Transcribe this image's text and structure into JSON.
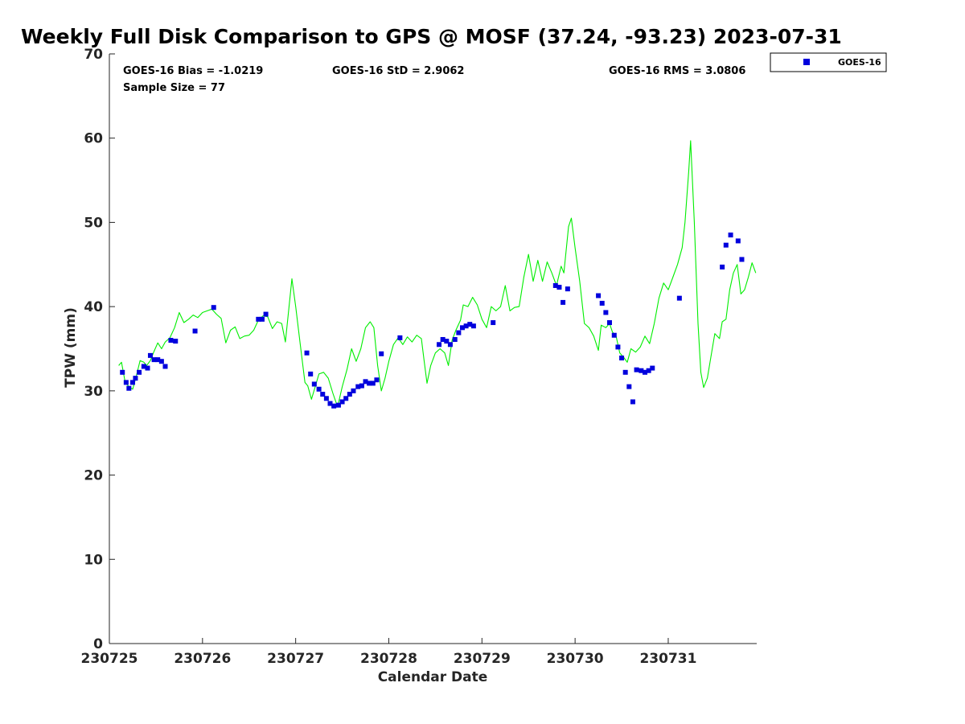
{
  "chart_data": {
    "type": "scatter",
    "title": "Weekly Full Disk Comparison to GPS @ MOSF (37.24, -93.23) 2023-07-31",
    "xlabel": "Calendar Date",
    "ylabel": "TPW (mm)",
    "xlim": [
      25.0,
      31.95
    ],
    "ylim": [
      0,
      70
    ],
    "x_ticks": [
      25,
      26,
      27,
      28,
      29,
      30,
      31
    ],
    "x_tick_labels": [
      "230725",
      "230726",
      "230727",
      "230728",
      "230729",
      "230730",
      "230731"
    ],
    "y_ticks": [
      0,
      10,
      20,
      30,
      40,
      50,
      60,
      70
    ],
    "grid": false,
    "legend_position": "top-right, outside plot",
    "stats": {
      "bias": "GOES-16 Bias = -1.0219",
      "std": "GOES-16 StD = 2.9062",
      "rms": "GOES-16 RMS = 3.0806",
      "sample": "Sample Size = 77"
    },
    "series": [
      {
        "name": "GOES-16",
        "marker": "square",
        "color": "#0000dd",
        "points": [
          [
            25.14,
            32.2
          ],
          [
            25.18,
            31.0
          ],
          [
            25.21,
            30.3
          ],
          [
            25.25,
            31.0
          ],
          [
            25.28,
            31.5
          ],
          [
            25.32,
            32.2
          ],
          [
            25.37,
            32.9
          ],
          [
            25.41,
            32.7
          ],
          [
            25.44,
            34.2
          ],
          [
            25.48,
            33.7
          ],
          [
            25.52,
            33.7
          ],
          [
            25.56,
            33.5
          ],
          [
            25.6,
            32.9
          ],
          [
            25.66,
            36.0
          ],
          [
            25.71,
            35.9
          ],
          [
            25.92,
            37.1
          ],
          [
            26.12,
            39.9
          ],
          [
            26.6,
            38.5
          ],
          [
            26.64,
            38.5
          ],
          [
            26.68,
            39.1
          ],
          [
            27.12,
            34.5
          ],
          [
            27.16,
            32.0
          ],
          [
            27.2,
            30.8
          ],
          [
            27.25,
            30.2
          ],
          [
            27.29,
            29.6
          ],
          [
            27.33,
            29.1
          ],
          [
            27.37,
            28.5
          ],
          [
            27.41,
            28.2
          ],
          [
            27.46,
            28.3
          ],
          [
            27.5,
            28.7
          ],
          [
            27.54,
            29.1
          ],
          [
            27.58,
            29.6
          ],
          [
            27.62,
            30.0
          ],
          [
            27.67,
            30.5
          ],
          [
            27.71,
            30.6
          ],
          [
            27.75,
            31.1
          ],
          [
            27.79,
            30.9
          ],
          [
            27.83,
            30.9
          ],
          [
            27.87,
            31.3
          ],
          [
            27.92,
            34.4
          ],
          [
            28.12,
            36.3
          ],
          [
            28.54,
            35.5
          ],
          [
            28.58,
            36.1
          ],
          [
            28.62,
            35.9
          ],
          [
            28.66,
            35.5
          ],
          [
            28.71,
            36.1
          ],
          [
            28.75,
            36.9
          ],
          [
            28.79,
            37.5
          ],
          [
            28.83,
            37.7
          ],
          [
            28.87,
            37.9
          ],
          [
            28.91,
            37.7
          ],
          [
            29.12,
            38.1
          ],
          [
            29.79,
            42.5
          ],
          [
            29.83,
            42.3
          ],
          [
            29.87,
            40.5
          ],
          [
            29.92,
            42.1
          ],
          [
            30.25,
            41.3
          ],
          [
            30.29,
            40.4
          ],
          [
            30.33,
            39.3
          ],
          [
            30.37,
            38.1
          ],
          [
            30.42,
            36.6
          ],
          [
            30.46,
            35.2
          ],
          [
            30.5,
            33.9
          ],
          [
            30.54,
            32.2
          ],
          [
            30.58,
            30.5
          ],
          [
            30.62,
            28.7
          ],
          [
            30.66,
            32.5
          ],
          [
            30.71,
            32.4
          ],
          [
            30.75,
            32.2
          ],
          [
            30.79,
            32.4
          ],
          [
            30.83,
            32.7
          ],
          [
            31.12,
            41.0
          ],
          [
            31.58,
            44.7
          ],
          [
            31.62,
            47.3
          ],
          [
            31.67,
            48.5
          ],
          [
            31.75,
            47.8
          ],
          [
            31.79,
            45.6
          ]
        ]
      },
      {
        "name": "",
        "line": true,
        "color": "#00ee00",
        "points": [
          [
            25.1,
            33.0
          ],
          [
            25.13,
            33.4
          ],
          [
            25.17,
            31.0
          ],
          [
            25.21,
            30.5
          ],
          [
            25.25,
            30.2
          ],
          [
            25.29,
            31.8
          ],
          [
            25.33,
            33.6
          ],
          [
            25.37,
            33.4
          ],
          [
            25.4,
            33.0
          ],
          [
            25.44,
            33.6
          ],
          [
            25.48,
            34.7
          ],
          [
            25.52,
            35.7
          ],
          [
            25.56,
            35.0
          ],
          [
            25.6,
            35.8
          ],
          [
            25.65,
            36.3
          ],
          [
            25.7,
            37.5
          ],
          [
            25.75,
            39.3
          ],
          [
            25.8,
            38.1
          ],
          [
            25.85,
            38.5
          ],
          [
            25.9,
            39.0
          ],
          [
            25.95,
            38.7
          ],
          [
            26.0,
            39.3
          ],
          [
            26.05,
            39.5
          ],
          [
            26.1,
            39.7
          ],
          [
            26.15,
            39.1
          ],
          [
            26.2,
            38.6
          ],
          [
            26.25,
            35.7
          ],
          [
            26.3,
            37.2
          ],
          [
            26.35,
            37.6
          ],
          [
            26.4,
            36.2
          ],
          [
            26.45,
            36.5
          ],
          [
            26.5,
            36.6
          ],
          [
            26.55,
            37.2
          ],
          [
            26.6,
            38.4
          ],
          [
            26.65,
            38.9
          ],
          [
            26.7,
            38.8
          ],
          [
            26.75,
            37.4
          ],
          [
            26.8,
            38.2
          ],
          [
            26.85,
            38.0
          ],
          [
            26.89,
            35.8
          ],
          [
            26.96,
            43.3
          ],
          [
            27.0,
            40.0
          ],
          [
            27.05,
            35.5
          ],
          [
            27.1,
            31.0
          ],
          [
            27.13,
            30.6
          ],
          [
            27.17,
            29.0
          ],
          [
            27.21,
            30.5
          ],
          [
            27.25,
            32.0
          ],
          [
            27.3,
            32.2
          ],
          [
            27.35,
            31.5
          ],
          [
            27.4,
            29.7
          ],
          [
            27.45,
            28.1
          ],
          [
            27.5,
            30.5
          ],
          [
            27.55,
            32.5
          ],
          [
            27.6,
            35.0
          ],
          [
            27.65,
            33.5
          ],
          [
            27.7,
            35.0
          ],
          [
            27.75,
            37.5
          ],
          [
            27.8,
            38.2
          ],
          [
            27.84,
            37.5
          ],
          [
            27.88,
            33.0
          ],
          [
            27.92,
            30.0
          ],
          [
            27.96,
            31.5
          ],
          [
            28.0,
            33.5
          ],
          [
            28.05,
            35.5
          ],
          [
            28.1,
            36.3
          ],
          [
            28.15,
            35.5
          ],
          [
            28.2,
            36.4
          ],
          [
            28.25,
            35.8
          ],
          [
            28.3,
            36.6
          ],
          [
            28.35,
            36.2
          ],
          [
            28.38,
            33.5
          ],
          [
            28.41,
            30.9
          ],
          [
            28.45,
            33.0
          ],
          [
            28.5,
            34.5
          ],
          [
            28.55,
            35.0
          ],
          [
            28.6,
            34.5
          ],
          [
            28.64,
            33.0
          ],
          [
            28.68,
            36.0
          ],
          [
            28.72,
            37.2
          ],
          [
            28.77,
            38.4
          ],
          [
            28.8,
            40.2
          ],
          [
            28.85,
            40.0
          ],
          [
            28.9,
            41.1
          ],
          [
            28.95,
            40.2
          ],
          [
            29.0,
            38.5
          ],
          [
            29.05,
            37.5
          ],
          [
            29.1,
            40.0
          ],
          [
            29.15,
            39.5
          ],
          [
            29.2,
            40.0
          ],
          [
            29.25,
            42.5
          ],
          [
            29.3,
            39.5
          ],
          [
            29.35,
            39.9
          ],
          [
            29.4,
            40.0
          ],
          [
            29.45,
            43.5
          ],
          [
            29.5,
            46.2
          ],
          [
            29.55,
            43.0
          ],
          [
            29.6,
            45.5
          ],
          [
            29.65,
            43.0
          ],
          [
            29.7,
            45.3
          ],
          [
            29.75,
            44.0
          ],
          [
            29.8,
            42.5
          ],
          [
            29.85,
            44.8
          ],
          [
            29.88,
            44.0
          ],
          [
            29.93,
            49.5
          ],
          [
            29.96,
            50.5
          ],
          [
            30.0,
            47.0
          ],
          [
            30.05,
            43.0
          ],
          [
            30.1,
            38.0
          ],
          [
            30.15,
            37.5
          ],
          [
            30.2,
            36.5
          ],
          [
            30.25,
            34.8
          ],
          [
            30.28,
            37.8
          ],
          [
            30.33,
            37.5
          ],
          [
            30.37,
            38.0
          ],
          [
            30.4,
            37.0
          ],
          [
            30.44,
            36.5
          ],
          [
            30.48,
            34.5
          ],
          [
            30.52,
            34.0
          ],
          [
            30.56,
            33.4
          ],
          [
            30.6,
            35.0
          ],
          [
            30.65,
            34.6
          ],
          [
            30.7,
            35.2
          ],
          [
            30.75,
            36.5
          ],
          [
            30.8,
            35.6
          ],
          [
            30.85,
            38.0
          ],
          [
            30.9,
            41.0
          ],
          [
            30.95,
            42.8
          ],
          [
            31.0,
            42.0
          ],
          [
            31.05,
            43.5
          ],
          [
            31.1,
            45.0
          ],
          [
            31.15,
            47.0
          ],
          [
            31.18,
            50.0
          ],
          [
            31.22,
            56.0
          ],
          [
            31.24,
            59.7
          ],
          [
            31.28,
            50.0
          ],
          [
            31.32,
            38.0
          ],
          [
            31.35,
            32.2
          ],
          [
            31.38,
            30.4
          ],
          [
            31.42,
            31.5
          ],
          [
            31.45,
            33.5
          ],
          [
            31.5,
            36.8
          ],
          [
            31.55,
            36.2
          ],
          [
            31.58,
            38.2
          ],
          [
            31.62,
            38.5
          ],
          [
            31.66,
            42.0
          ],
          [
            31.7,
            44.0
          ],
          [
            31.74,
            45.0
          ],
          [
            31.78,
            41.5
          ],
          [
            31.82,
            42.0
          ],
          [
            31.86,
            43.5
          ],
          [
            31.9,
            45.2
          ],
          [
            31.94,
            44.0
          ]
        ]
      }
    ]
  },
  "legend": {
    "label": "GOES-16"
  }
}
